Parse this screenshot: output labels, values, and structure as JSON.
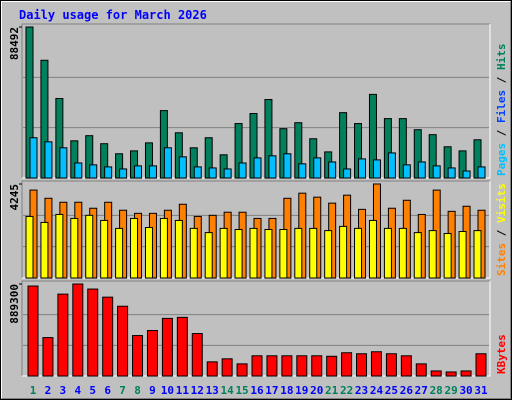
{
  "chart_data": {
    "title": "Daily usage for March 2026",
    "categories": [
      "1",
      "2",
      "3",
      "4",
      "5",
      "6",
      "7",
      "8",
      "9",
      "10",
      "11",
      "12",
      "13",
      "14",
      "15",
      "16",
      "17",
      "18",
      "19",
      "20",
      "21",
      "22",
      "23",
      "24",
      "25",
      "26",
      "27",
      "28",
      "29",
      "30",
      "31"
    ],
    "category_color": "#0000ff",
    "highlight_color": "#00805c",
    "highlight_index": [
      0,
      6,
      7,
      13,
      14,
      20,
      21,
      27,
      28
    ],
    "separator": " / ",
    "panels": [
      {
        "type": "bar",
        "ylim": [
          0,
          88492
        ],
        "yticks": [
          88492
        ],
        "legend": [
          {
            "text": "Pages",
            "color": "#00c0ff"
          },
          {
            "text": "Files",
            "color": "#0040ff"
          },
          {
            "text": "Hits",
            "color": "#00805c"
          }
        ],
        "series": [
          {
            "color": "#00805c",
            "values": [
              88492,
              69000,
              46600,
              21800,
              24800,
              20100,
              14200,
              15900,
              20600,
              39500,
              26500,
              17700,
              23600,
              13600,
              31900,
              37800,
              46000,
              28900,
              32400,
              23000,
              15300,
              38300,
              31900,
              49000,
              34800,
              34800,
              28300,
              25400,
              18300,
              15900,
              22400
            ]
          },
          {
            "color": "#00c0ff",
            "values": [
              23600,
              21200,
              17700,
              8800,
              7700,
              6500,
              5300,
              7100,
              7100,
              17700,
              12400,
              6500,
              5900,
              5300,
              8800,
              11800,
              13000,
              14200,
              8300,
              11800,
              9400,
              5300,
              11200,
              10600,
              14700,
              7700,
              9400,
              7100,
              5900,
              4100,
              6500
            ]
          }
        ]
      },
      {
        "type": "bar",
        "ylim": [
          0,
          4245
        ],
        "yticks": [
          4245
        ],
        "legend": [
          {
            "text": "Sites",
            "color": "#ff8000"
          },
          {
            "text": "Visits",
            "color": "#ffff00"
          }
        ],
        "series": [
          {
            "color": "#ff8000",
            "values": [
              3970,
              3600,
              3420,
              3420,
              3150,
              3420,
              3060,
              2920,
              2920,
              3060,
              3330,
              2780,
              2830,
              2970,
              2970,
              2690,
              2690,
              3600,
              3830,
              3650,
              3380,
              3740,
              3100,
              4245,
              3150,
              3510,
              2870,
              3970,
              3010,
              3240,
              3060
            ]
          },
          {
            "color": "#ffff00",
            "values": [
              2780,
              2510,
              2870,
              2690,
              2830,
              2600,
              2240,
              2690,
              2280,
              2690,
              2600,
              2240,
              2050,
              2240,
              2190,
              2240,
              2190,
              2190,
              2240,
              2240,
              2140,
              2330,
              2240,
              2600,
              2240,
              2240,
              2050,
              2140,
              2010,
              2100,
              2140
            ]
          }
        ]
      },
      {
        "type": "bar",
        "ylim": [
          0,
          889300
        ],
        "yticks": [
          889300
        ],
        "legend": [
          {
            "text": "KBytes",
            "color": "#ff0000"
          }
        ],
        "series": [
          {
            "color": "#ff0000",
            "values": [
              869700,
              371300,
              791500,
              889300,
              840400,
              762200,
              674300,
              390900,
              439700,
              557000,
              566800,
              410400,
              136800,
              166100,
              117300,
              195400,
              195400,
              195400,
              195400,
              195400,
              190500,
              224800,
              215000,
              234500,
              215000,
              195400,
              117300,
              48900,
              39100,
              48900,
              215000
            ]
          }
        ]
      }
    ]
  }
}
